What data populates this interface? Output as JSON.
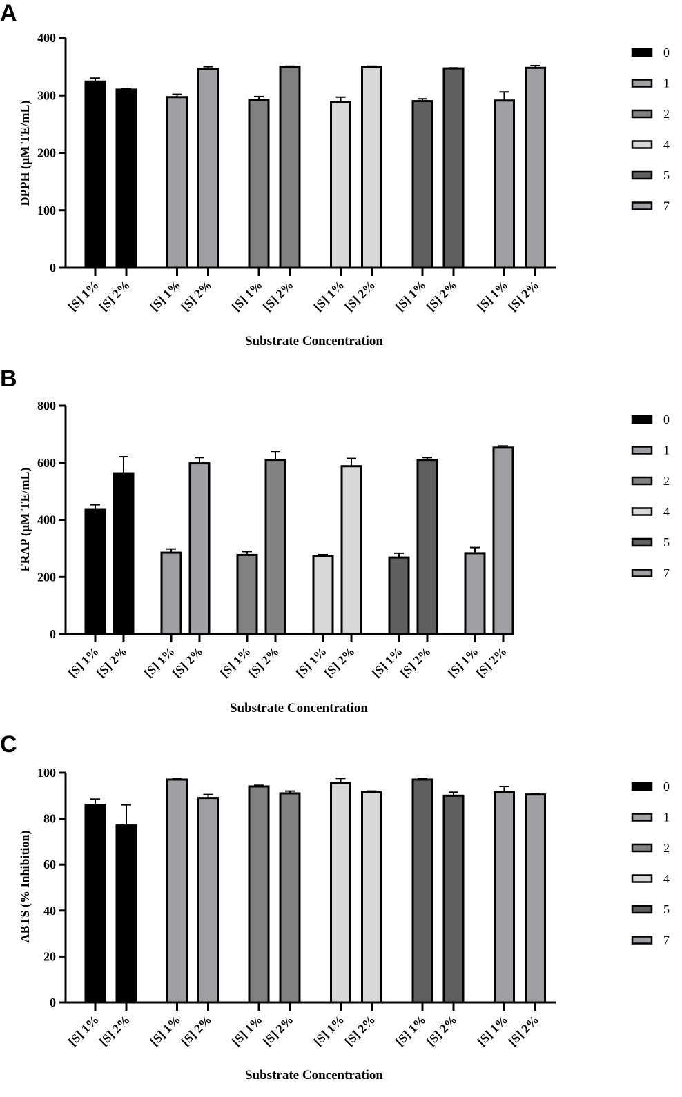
{
  "chart_data": [
    {
      "panel": "A",
      "type": "bar",
      "title": "",
      "ylabel": "DPPH (µM TE/mL)",
      "xlabel": "Substrate Concentration",
      "ylim": [
        0,
        400
      ],
      "yticks": [
        0,
        100,
        200,
        300,
        400
      ],
      "groups": [
        "0",
        "1",
        "2",
        "4",
        "5",
        "7"
      ],
      "categories": [
        "[S] 1%",
        "[S] 2%"
      ],
      "series": [
        {
          "name": "0",
          "color": "#000000",
          "values": [
            324,
            310
          ],
          "errors": [
            6,
            2
          ]
        },
        {
          "name": "1",
          "color": "#a0a0a4",
          "values": [
            297,
            346
          ],
          "errors": [
            5,
            4
          ]
        },
        {
          "name": "2",
          "color": "#828282",
          "values": [
            292,
            350
          ],
          "errors": [
            6,
            1
          ]
        },
        {
          "name": "4",
          "color": "#d8d8d8",
          "values": [
            288,
            349
          ],
          "errors": [
            9,
            2
          ]
        },
        {
          "name": "5",
          "color": "#5f5f5f",
          "values": [
            290,
            347
          ],
          "errors": [
            4,
            1
          ]
        },
        {
          "name": "7",
          "color": "#a0a0a4",
          "values": [
            291,
            348
          ],
          "errors": [
            15,
            4
          ]
        }
      ],
      "legend": [
        "0",
        "1",
        "2",
        "4",
        "5",
        "7"
      ]
    },
    {
      "panel": "B",
      "type": "bar",
      "title": "",
      "ylabel": "FRAP (µM TE/mL)",
      "xlabel": "Substrate Concentration",
      "ylim": [
        0,
        800
      ],
      "yticks": [
        0,
        200,
        400,
        600,
        800
      ],
      "groups": [
        "0",
        "1",
        "2",
        "4",
        "5",
        "7"
      ],
      "categories": [
        "[S] 1%",
        "[S] 2%"
      ],
      "series": [
        {
          "name": "0",
          "color": "#000000",
          "values": [
            435,
            563
          ],
          "errors": [
            18,
            58
          ]
        },
        {
          "name": "1",
          "color": "#a0a0a4",
          "values": [
            285,
            598
          ],
          "errors": [
            13,
            20
          ]
        },
        {
          "name": "2",
          "color": "#828282",
          "values": [
            277,
            610
          ],
          "errors": [
            12,
            30
          ]
        },
        {
          "name": "4",
          "color": "#d8d8d8",
          "values": [
            272,
            588
          ],
          "errors": [
            6,
            27
          ]
        },
        {
          "name": "5",
          "color": "#5f5f5f",
          "values": [
            268,
            610
          ],
          "errors": [
            15,
            8
          ]
        },
        {
          "name": "7",
          "color": "#a0a0a4",
          "values": [
            283,
            653
          ],
          "errors": [
            20,
            6
          ]
        }
      ],
      "legend": [
        "0",
        "1",
        "2",
        "4",
        "5",
        "7"
      ]
    },
    {
      "panel": "C",
      "type": "bar",
      "title": "",
      "ylabel": "ABTS (% Inhibition)",
      "xlabel": "Substrate Concentration",
      "ylim": [
        0,
        100
      ],
      "yticks": [
        0,
        20,
        40,
        60,
        80,
        100
      ],
      "groups": [
        "0",
        "1",
        "2",
        "4",
        "5",
        "7"
      ],
      "categories": [
        "[S] 1%",
        "[S] 2%"
      ],
      "series": [
        {
          "name": "0",
          "color": "#000000",
          "values": [
            86,
            77
          ],
          "errors": [
            2.5,
            9
          ]
        },
        {
          "name": "1",
          "color": "#a0a0a4",
          "values": [
            97,
            89
          ],
          "errors": [
            0.5,
            1.5
          ]
        },
        {
          "name": "2",
          "color": "#828282",
          "values": [
            94,
            91
          ],
          "errors": [
            0.5,
            1
          ]
        },
        {
          "name": "4",
          "color": "#d8d8d8",
          "values": [
            95.5,
            91.5
          ],
          "errors": [
            2,
            0.5
          ]
        },
        {
          "name": "5",
          "color": "#5f5f5f",
          "values": [
            97,
            90
          ],
          "errors": [
            0.5,
            1.5
          ]
        },
        {
          "name": "7",
          "color": "#a0a0a4",
          "values": [
            91.5,
            90.5
          ],
          "errors": [
            2.5,
            0.3
          ]
        }
      ],
      "legend": [
        "0",
        "1",
        "2",
        "4",
        "5",
        "7"
      ]
    }
  ]
}
